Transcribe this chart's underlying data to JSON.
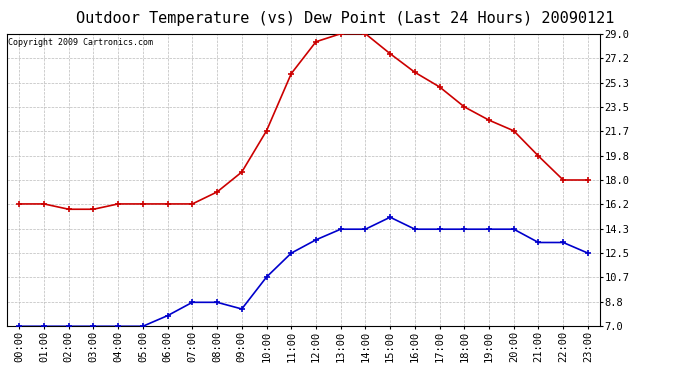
{
  "title": "Outdoor Temperature (vs) Dew Point (Last 24 Hours) 20090121",
  "copyright": "Copyright 2009 Cartronics.com",
  "x_labels": [
    "00:00",
    "01:00",
    "02:00",
    "03:00",
    "04:00",
    "05:00",
    "06:00",
    "07:00",
    "08:00",
    "09:00",
    "10:00",
    "11:00",
    "12:00",
    "13:00",
    "14:00",
    "15:00",
    "16:00",
    "17:00",
    "18:00",
    "19:00",
    "20:00",
    "21:00",
    "22:00",
    "23:00"
  ],
  "temp_data": [
    16.2,
    16.2,
    15.8,
    15.8,
    16.2,
    16.2,
    16.2,
    16.2,
    17.1,
    18.6,
    21.7,
    26.0,
    28.4,
    29.0,
    29.0,
    27.5,
    26.1,
    25.0,
    23.5,
    22.5,
    21.7,
    19.8,
    18.0,
    18.0
  ],
  "dew_data": [
    7.0,
    7.0,
    7.0,
    7.0,
    7.0,
    7.0,
    7.8,
    8.8,
    8.8,
    8.3,
    10.7,
    12.5,
    13.5,
    14.3,
    14.3,
    15.2,
    14.3,
    14.3,
    14.3,
    14.3,
    14.3,
    13.3,
    13.3,
    12.5
  ],
  "ylim": [
    7.0,
    29.0
  ],
  "yticks": [
    7.0,
    8.8,
    10.7,
    12.5,
    14.3,
    16.2,
    18.0,
    19.8,
    21.7,
    23.5,
    25.3,
    27.2,
    29.0
  ],
  "temp_color": "#cc0000",
  "dew_color": "#0000cc",
  "bg_color": "#ffffff",
  "plot_bg_color": "#ffffff",
  "grid_color": "#bbbbbb",
  "title_fontsize": 11,
  "label_fontsize": 7.5
}
